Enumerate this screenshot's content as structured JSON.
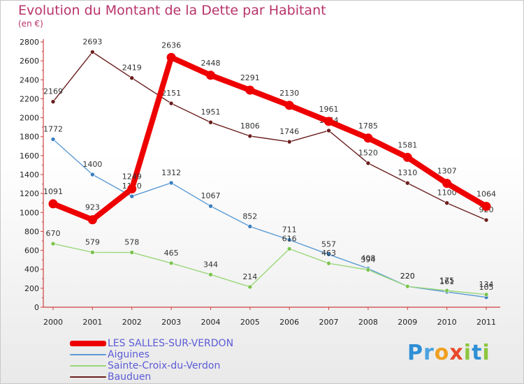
{
  "title": "Evolution du Montant de la Dette par Habitant",
  "subtitle": "(en €)",
  "logo_text": "Proxiti",
  "chart_data": {
    "type": "line",
    "title": "Evolution du Montant de la Dette par Habitant",
    "ylabel": "(en €)",
    "xlabel": "",
    "ylim": [
      0,
      2800
    ],
    "yticks": [
      0,
      200,
      400,
      600,
      800,
      1000,
      1200,
      1400,
      1600,
      1800,
      2000,
      2200,
      2400,
      2600,
      2800
    ],
    "grid": false,
    "legend_position": "bottom-left",
    "categories": [
      "2000",
      "2001",
      "2002",
      "2003",
      "2004",
      "2005",
      "2006",
      "2007",
      "2008",
      "2009",
      "2010",
      "2011"
    ],
    "series": [
      {
        "name": "Bauduen",
        "color": "#6b1e1e",
        "marker": "#6b1e1e",
        "values": [
          2169,
          2693,
          2419,
          2151,
          1951,
          1806,
          1746,
          1864,
          1520,
          1310,
          1100,
          920
        ]
      },
      {
        "name": "Aiguines",
        "color": "#5b9bd5",
        "marker": "#3a7fc0",
        "values": [
          1772,
          1400,
          1170,
          1312,
          1067,
          852,
          711,
          557,
          408,
          220,
          161,
          105
        ]
      },
      {
        "name": "Sainte-Croix-du-Verdon",
        "color": "#9ad77a",
        "marker": "#7cc34f",
        "values": [
          670,
          579,
          578,
          465,
          344,
          214,
          616,
          463,
          394,
          220,
          175,
          134
        ]
      },
      {
        "name": "LES SALLES-SUR-VERDON",
        "color": "#ee0000",
        "marker": "#ee0000",
        "values": [
          1091,
          923,
          1249,
          2636,
          2448,
          2291,
          2130,
          1961,
          1785,
          1581,
          1307,
          1064
        ]
      }
    ]
  }
}
